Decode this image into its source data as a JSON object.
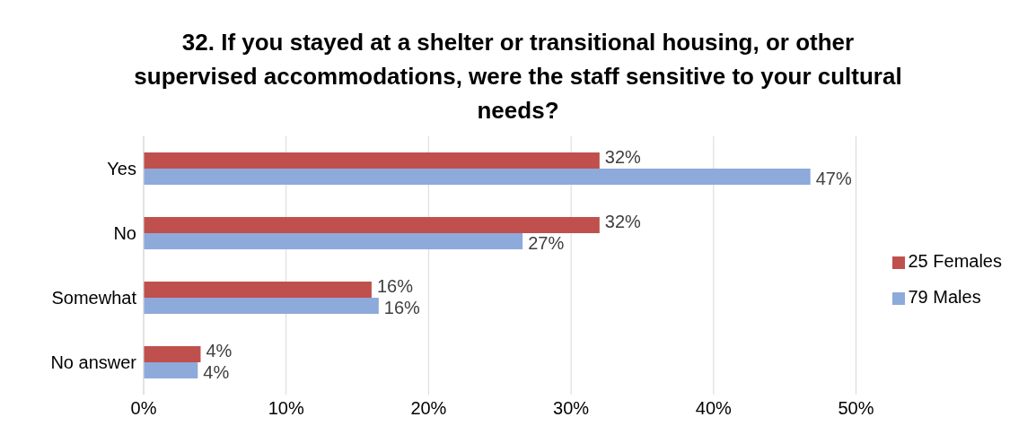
{
  "chart_data": {
    "type": "bar",
    "orientation": "horizontal",
    "title": "32. If you stayed at a shelter or transitional housing, or other supervised accommodations, were the staff sensitive to your cultural needs?",
    "categories": [
      "Yes",
      "No",
      "Somewhat",
      "No answer"
    ],
    "series": [
      {
        "name": "25 Females",
        "color": "#c0504d",
        "values": [
          32,
          32,
          16,
          4
        ],
        "value_labels": [
          "32%",
          "32%",
          "16%",
          "4%"
        ]
      },
      {
        "name": "79 Males",
        "color": "#8eaadb",
        "values": [
          46.8,
          26.6,
          16.5,
          3.8
        ],
        "value_labels": [
          "47%",
          "27%",
          "16%",
          "4%"
        ]
      }
    ],
    "xlim": [
      0,
      50
    ],
    "xticks": [
      {
        "value": 0,
        "label": "0%"
      },
      {
        "value": 10,
        "label": "10%"
      },
      {
        "value": 20,
        "label": "20%"
      },
      {
        "value": 30,
        "label": "30%"
      },
      {
        "value": 40,
        "label": "40%"
      },
      {
        "value": 50,
        "label": "50%"
      }
    ],
    "grid": "x",
    "legend": "right"
  }
}
